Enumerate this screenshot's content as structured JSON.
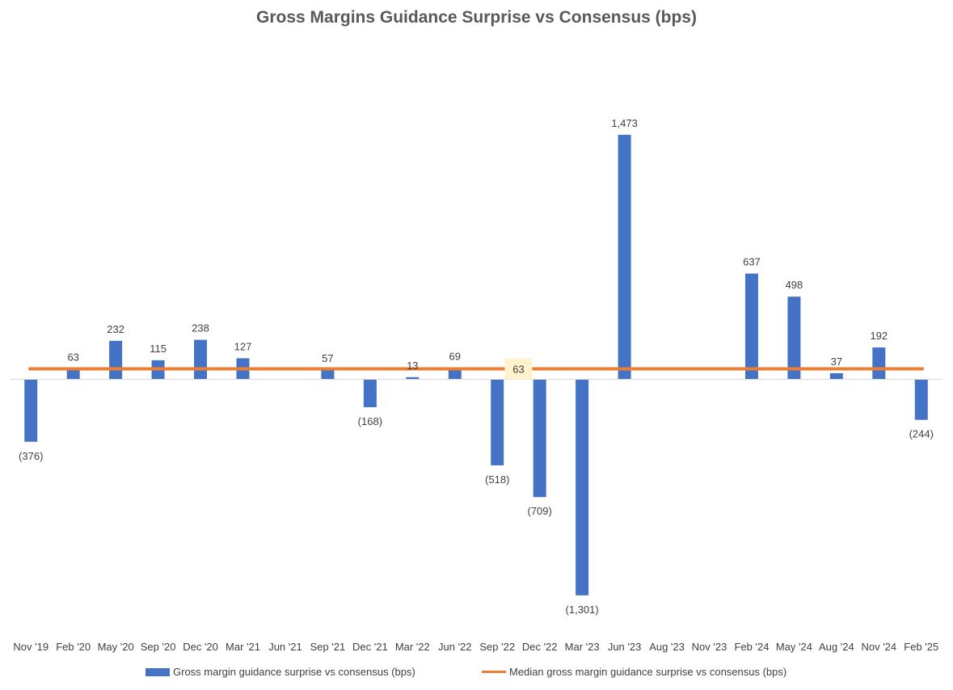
{
  "chart_data": {
    "type": "bar",
    "title": "Gross Margins Guidance Surprise vs Consensus (bps)",
    "categories": [
      "Nov '19",
      "Feb '20",
      "May '20",
      "Sep '20",
      "Dec '20",
      "Mar '21",
      "Jun '21",
      "Sep '21",
      "Dec '21",
      "Mar '22",
      "Jun '22",
      "Sep '22",
      "Dec '22",
      "Mar '23",
      "Jun '23",
      "Aug '23",
      "Nov '23",
      "Feb '24",
      "May '24",
      "Aug '24",
      "Nov '24",
      "Feb '25"
    ],
    "series": [
      {
        "name": "Gross margin guidance surprise vs consensus (bps)",
        "type": "bar",
        "color": "#4472C4",
        "values": [
          -376,
          63,
          232,
          115,
          238,
          127,
          null,
          57,
          -168,
          13,
          69,
          -518,
          -709,
          -1301,
          1473,
          null,
          null,
          637,
          498,
          37,
          192,
          -244
        ],
        "labels": [
          "(376)",
          "63",
          "232",
          "115",
          "238",
          "127",
          "",
          "57",
          "(168)",
          "13",
          "69",
          "(518)",
          "(709)",
          "(1,301)",
          "1,473",
          "",
          "",
          "637",
          "498",
          "37",
          "192",
          "(244)"
        ]
      },
      {
        "name": "Median gross margin guidance surprise vs consensus (bps)",
        "type": "line",
        "color": "#ED7D31",
        "value": 63,
        "label": "63"
      }
    ],
    "xlabel": "",
    "ylabel": "",
    "ylim": [
      -1500,
      1700
    ],
    "grid": false,
    "legend": "bottom"
  }
}
